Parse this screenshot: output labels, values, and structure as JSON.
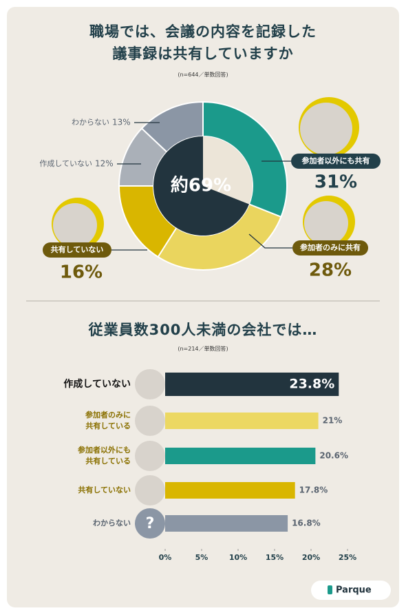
{
  "chart_data": [
    {
      "type": "donut",
      "title": "職場では、会議の内容を記録した\n議事録は共有していますか",
      "subtitle": "(n=644／単数回答)",
      "center_value": 69,
      "center_label": "約69%",
      "categories": [
        "参加者以外にも共有",
        "参加者のみに共有",
        "共有していない",
        "作成していない",
        "わからない"
      ],
      "values": [
        31,
        28,
        16,
        12,
        13
      ],
      "value_labels": [
        "31%",
        "28%",
        "16%",
        "12%",
        "13%"
      ],
      "colors": [
        "#1b9a8b",
        "#ead55e",
        "#d9b600",
        "#aab0b8",
        "#8b96a5"
      ]
    },
    {
      "type": "bar",
      "title": "従業員数300人未満の会社では…",
      "subtitle": "(n=214／単数回答)",
      "categories": [
        "作成していない",
        "参加者のみに\n共有している",
        "参加者以外にも\n共有している",
        "共有していない",
        "わからない"
      ],
      "values": [
        23.8,
        21,
        20.6,
        17.8,
        16.8
      ],
      "value_labels": [
        "23.8%",
        "21%",
        "20.6%",
        "17.8%",
        "16.8%"
      ],
      "colors": [
        "#22343e",
        "#ecd862",
        "#1b9a8b",
        "#d9b600",
        "#8b96a5"
      ],
      "xlim": [
        0,
        25
      ],
      "xticks": [
        {
          "value": 0,
          "label": "0%"
        },
        {
          "value": 5,
          "label": "5%"
        },
        {
          "value": 10,
          "label": "10%"
        },
        {
          "value": 15,
          "label": "15%"
        },
        {
          "value": 20,
          "label": "20%"
        },
        {
          "value": 25,
          "label": "25%"
        }
      ]
    }
  ],
  "footer": {
    "brand": "Parque"
  }
}
